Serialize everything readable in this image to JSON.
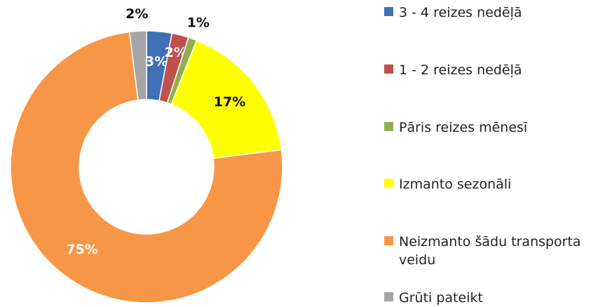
{
  "chart_data": {
    "type": "donut",
    "categories": [
      "3 - 4 reizes nedēļā",
      "1 - 2 reizes nedēļā",
      "Pāris reizes mēnesī",
      "Izmanto sezonāli",
      "Neizmanto šādu transporta veidu",
      "Grūti pateikt"
    ],
    "values": [
      3,
      2,
      1,
      17,
      75,
      2
    ],
    "value_labels": [
      "3%",
      "2%",
      "1%",
      "17%",
      "75%",
      "2%"
    ],
    "colors": [
      "#3f6fb5",
      "#c0504d",
      "#8fae4e",
      "#ffff00",
      "#f79646",
      "#a5a5a5"
    ]
  }
}
